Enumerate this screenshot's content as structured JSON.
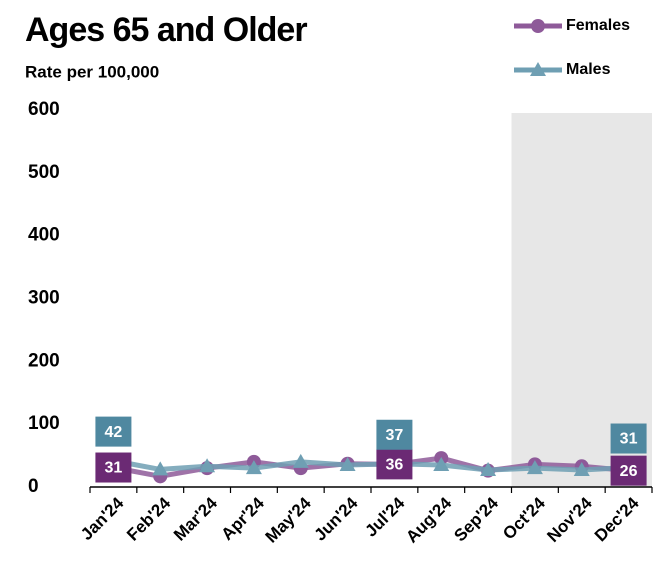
{
  "chart_data": {
    "type": "line",
    "title": "Ages 65 and Older",
    "subtitle": "Rate per 100,000",
    "categories": [
      "Jan'24",
      "Feb'24",
      "Mar'24",
      "Apr'24",
      "May'24",
      "Jun'24",
      "Jul'24",
      "Aug'24",
      "Sep'24",
      "Oct'24",
      "Nov'24",
      "Dec'24"
    ],
    "series": [
      {
        "name": "Females",
        "color": "#8e5a99",
        "label_color": "#6b2a74",
        "marker": "circle",
        "values": [
          31,
          17,
          30,
          40,
          30,
          37,
          36,
          46,
          26,
          36,
          33,
          26
        ]
      },
      {
        "name": "Males",
        "color": "#6f9fb3",
        "label_color": "#4f88a0",
        "marker": "triangle",
        "values": [
          42,
          28,
          33,
          30,
          40,
          35,
          37,
          35,
          27,
          30,
          27,
          31
        ]
      }
    ],
    "data_labels": [
      0,
      6,
      11
    ],
    "shade_from": 9,
    "ylim": [
      0,
      600
    ],
    "yticks": [
      0,
      100,
      200,
      300,
      400,
      500,
      600
    ],
    "grid": false
  }
}
